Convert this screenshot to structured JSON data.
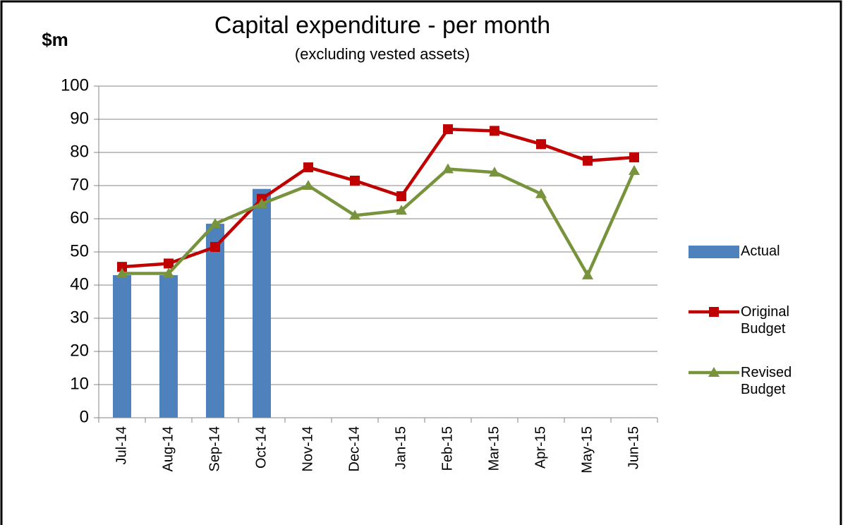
{
  "chart_data": {
    "type": "bar-line",
    "title": "Capital expenditure - per month",
    "subtitle": "(excluding vested assets)",
    "y_label": "$m",
    "categories": [
      "Jul-14",
      "Aug-14",
      "Sep-14",
      "Oct-14",
      "Nov-14",
      "Dec-14",
      "Jan-15",
      "Feb-15",
      "Mar-15",
      "Apr-15",
      "May-15",
      "Jun-15"
    ],
    "series": [
      {
        "name": "Actual",
        "type": "bar",
        "color": "#4f81bd",
        "values": [
          43,
          43,
          58.5,
          69,
          null,
          null,
          null,
          null,
          null,
          null,
          null,
          null
        ]
      },
      {
        "name": "Original Budget",
        "type": "line",
        "marker": "square",
        "color": "#c00000",
        "values": [
          45.5,
          46.5,
          51.5,
          66,
          75.5,
          71.5,
          66.8,
          87,
          86.5,
          82.5,
          77.5,
          78.5
        ]
      },
      {
        "name": "Revised Budget",
        "type": "line",
        "marker": "triangle",
        "color": "#77933c",
        "values": [
          43.5,
          43.5,
          58.5,
          64.5,
          70,
          61,
          62.5,
          75,
          74,
          67.5,
          43,
          74.5
        ]
      }
    ],
    "ylim": [
      0,
      100
    ],
    "yticks": [
      0,
      10,
      20,
      30,
      40,
      50,
      60,
      70,
      80,
      90,
      100
    ],
    "grid": true,
    "legend": "right"
  }
}
